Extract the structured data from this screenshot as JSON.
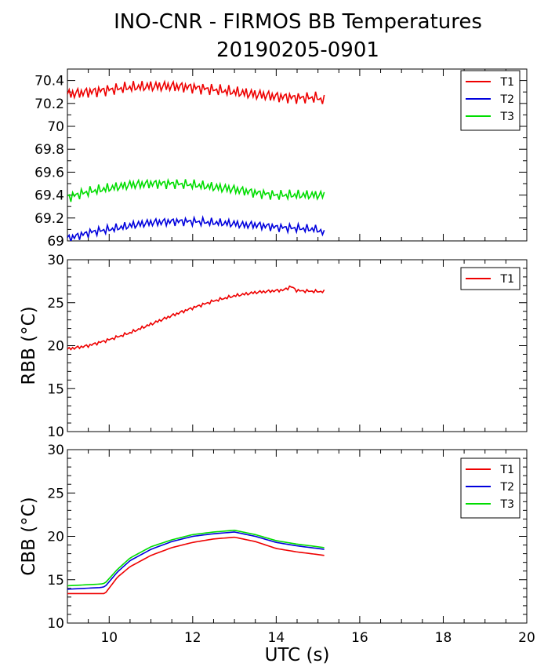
{
  "title_line1": "INO-CNR - FIRMOS BB Temperatures",
  "title_line2": "20190205-0901",
  "chart_data": [
    {
      "type": "line",
      "title": "",
      "xlabel": "",
      "ylabel": "",
      "xlim": [
        9,
        20
      ],
      "ylim": [
        69,
        70.5
      ],
      "yticks": [
        "69",
        "69.2",
        "69.4",
        "69.6",
        "69.8",
        "70",
        "70.2",
        "70.4"
      ],
      "legend_position": "top-right",
      "series": [
        {
          "name": "T1",
          "color": "#ee0000",
          "x": [
            9.0,
            9.5,
            10.0,
            10.5,
            11.0,
            11.5,
            12.0,
            12.5,
            13.0,
            13.5,
            14.0,
            14.5,
            15.0,
            15.15
          ],
          "values": [
            70.28,
            70.3,
            70.32,
            70.34,
            70.35,
            70.35,
            70.34,
            70.32,
            70.3,
            70.28,
            70.26,
            70.25,
            70.25,
            70.22
          ],
          "oscillation": 0.04
        },
        {
          "name": "T2",
          "color": "#0000dd",
          "x": [
            9.0,
            9.3,
            9.6,
            10.0,
            10.3,
            10.6,
            11.0,
            11.5,
            12.0,
            12.5,
            13.0,
            13.2,
            13.5,
            14.0,
            14.5,
            15.0,
            15.15
          ],
          "values": [
            69.02,
            69.05,
            69.08,
            69.1,
            69.12,
            69.14,
            69.16,
            69.17,
            69.17,
            69.16,
            69.15,
            69.14,
            69.14,
            69.12,
            69.11,
            69.1,
            69.06
          ],
          "oscillation": 0.03
        },
        {
          "name": "T3",
          "color": "#00dd00",
          "x": [
            9.0,
            9.5,
            10.0,
            10.5,
            11.0,
            11.5,
            12.0,
            12.5,
            13.0,
            13.5,
            14.0,
            14.5,
            15.0,
            15.15
          ],
          "values": [
            69.38,
            69.43,
            69.46,
            69.49,
            69.5,
            69.5,
            69.49,
            69.47,
            69.45,
            69.42,
            69.4,
            69.4,
            69.4,
            69.4
          ],
          "oscillation": 0.035
        }
      ]
    },
    {
      "type": "line",
      "title": "",
      "xlabel": "",
      "ylabel": "RBB (°C)",
      "xlim": [
        9,
        20
      ],
      "ylim": [
        10,
        30
      ],
      "yticks": [
        "10",
        "15",
        "20",
        "25",
        "30"
      ],
      "legend_position": "top-right",
      "series": [
        {
          "name": "T1",
          "color": "#ee0000",
          "x": [
            9.0,
            9.5,
            10.0,
            10.5,
            11.0,
            11.5,
            12.0,
            12.5,
            13.0,
            13.5,
            14.0,
            14.2,
            14.35,
            14.5,
            15.0,
            15.15
          ],
          "values": [
            19.6,
            20.0,
            20.7,
            21.5,
            22.5,
            23.5,
            24.4,
            25.2,
            25.8,
            26.2,
            26.4,
            26.5,
            26.9,
            26.4,
            26.3,
            26.3
          ],
          "oscillation": 0.15
        }
      ]
    },
    {
      "type": "line",
      "title": "",
      "xlabel": "UTC (s)",
      "ylabel": "CBB (°C)",
      "xlim": [
        9,
        20
      ],
      "ylim": [
        10,
        30
      ],
      "xticks": [
        "10",
        "12",
        "14",
        "16",
        "18",
        "20"
      ],
      "yticks": [
        "10",
        "15",
        "20",
        "25",
        "30"
      ],
      "legend_position": "top-right",
      "series": [
        {
          "name": "T1",
          "color": "#ee0000",
          "x": [
            9.0,
            9.8,
            9.9,
            10.2,
            10.5,
            11.0,
            11.5,
            12.0,
            12.5,
            13.0,
            13.5,
            14.0,
            14.5,
            15.0,
            15.15
          ],
          "values": [
            13.4,
            13.4,
            13.4,
            15.3,
            16.5,
            17.8,
            18.7,
            19.3,
            19.7,
            19.9,
            19.4,
            18.6,
            18.2,
            17.9,
            17.8
          ],
          "oscillation": 0
        },
        {
          "name": "T2",
          "color": "#0000dd",
          "x": [
            9.0,
            9.8,
            9.9,
            10.2,
            10.5,
            11.0,
            11.5,
            12.0,
            12.5,
            13.0,
            13.5,
            14.0,
            14.5,
            15.0,
            15.15
          ],
          "values": [
            13.9,
            14.1,
            14.2,
            15.9,
            17.2,
            18.5,
            19.4,
            20.0,
            20.3,
            20.5,
            20.0,
            19.3,
            18.9,
            18.6,
            18.5
          ],
          "oscillation": 0
        },
        {
          "name": "T3",
          "color": "#00dd00",
          "x": [
            9.0,
            9.8,
            9.9,
            10.2,
            10.5,
            11.0,
            11.5,
            12.0,
            12.5,
            13.0,
            13.5,
            14.0,
            14.5,
            15.0,
            15.15
          ],
          "values": [
            14.3,
            14.5,
            14.6,
            16.2,
            17.5,
            18.8,
            19.6,
            20.2,
            20.5,
            20.7,
            20.2,
            19.5,
            19.1,
            18.8,
            18.7
          ],
          "oscillation": 0
        }
      ]
    }
  ]
}
